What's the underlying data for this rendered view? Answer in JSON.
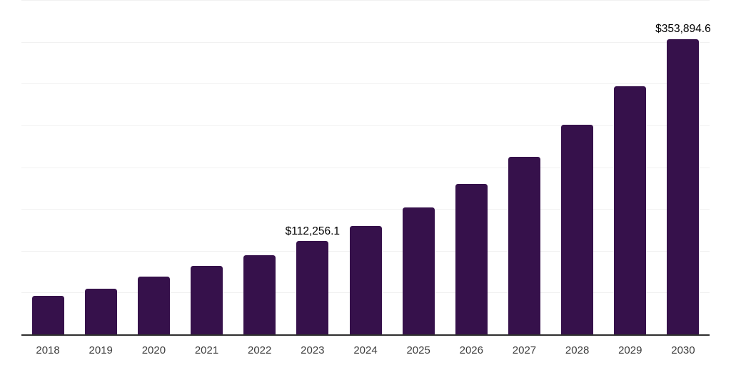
{
  "chart_data": {
    "type": "bar",
    "title": "",
    "xlabel": "",
    "ylabel": "",
    "categories": [
      "2018",
      "2019",
      "2020",
      "2021",
      "2022",
      "2023",
      "2024",
      "2025",
      "2026",
      "2027",
      "2028",
      "2029",
      "2030"
    ],
    "values": [
      46900,
      55400,
      70000,
      82900,
      95800,
      112256.1,
      130700,
      152900,
      181100,
      212900,
      251300,
      297700,
      353894.6
    ],
    "value_labels": {
      "2023": "$112,256.1",
      "2030": "$353,894.6"
    },
    "ylim": [
      0,
      400000
    ],
    "gridline_step": 50000,
    "grid": true,
    "legend_position": "none",
    "styles": {
      "bar_color": "#36114B",
      "gridline_color": "#F1F1F1",
      "axis_line_color": "#2E2E2E",
      "tick_label_color": "#3D3D3D",
      "value_label_color": "#000000",
      "background_color": "#FFFFFF"
    }
  }
}
